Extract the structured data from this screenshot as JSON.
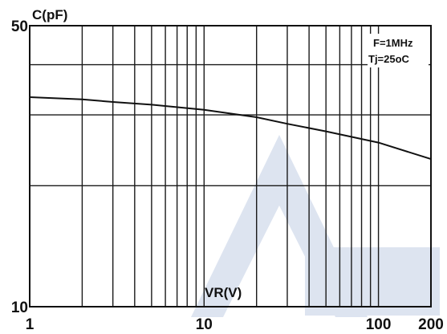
{
  "chart_data": {
    "type": "line",
    "ylabel": "C(pF)",
    "xlabel": "VR(V)",
    "x_scale": "log",
    "y_scale": "log",
    "xlim": [
      1,
      200
    ],
    "ylim": [
      10,
      50
    ],
    "x_tick_labels": [
      {
        "value": 1,
        "label": "1"
      },
      {
        "value": 10,
        "label": "10"
      },
      {
        "value": 100,
        "label": "100"
      },
      {
        "value": 200,
        "label": "200"
      }
    ],
    "y_tick_labels": [
      {
        "value": 50,
        "label": "50"
      },
      {
        "value": 10,
        "label": "10"
      }
    ],
    "x_gridlines": [
      2,
      3,
      4,
      5,
      6,
      7,
      8,
      9,
      10,
      20,
      30,
      40,
      50,
      60,
      70,
      80,
      90,
      100
    ],
    "y_gridlines": [
      20,
      30,
      40
    ],
    "grid": true,
    "annotations": [
      "F=1MHz",
      "Tj=25oC"
    ],
    "annotation_position": "top-right",
    "series": [
      {
        "x": [
          1,
          2,
          3,
          5,
          10,
          20,
          30,
          50,
          100,
          200
        ],
        "y": [
          33.2,
          32.8,
          32.3,
          31.8,
          30.9,
          29.6,
          28.5,
          27.3,
          25.6,
          23.3
        ]
      }
    ],
    "colors": {
      "line": "#111111",
      "grid": "#1a1a1a",
      "background": "#ffffff",
      "watermark": "#dde4f0"
    }
  }
}
